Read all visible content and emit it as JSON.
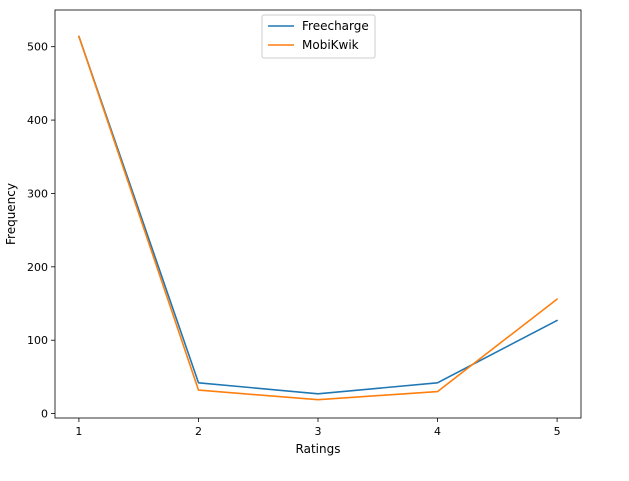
{
  "chart_data": {
    "type": "line",
    "title": "",
    "xlabel": "Ratings",
    "ylabel": "Frequency",
    "x": [
      1,
      2,
      3,
      4,
      5
    ],
    "xlim": [
      0.8,
      5.2
    ],
    "ylim": [
      -6,
      550
    ],
    "xticks": [
      1,
      2,
      3,
      4,
      5
    ],
    "yticks": [
      0,
      100,
      200,
      300,
      400,
      500
    ],
    "grid": false,
    "legend_position": "upper center",
    "series": [
      {
        "name": "Freecharge",
        "color": "#1f77b4",
        "values": [
          514,
          42,
          27,
          42,
          127
        ]
      },
      {
        "name": "MobiKwik",
        "color": "#ff7f0e",
        "values": [
          514,
          32,
          19,
          30,
          156
        ]
      }
    ]
  }
}
